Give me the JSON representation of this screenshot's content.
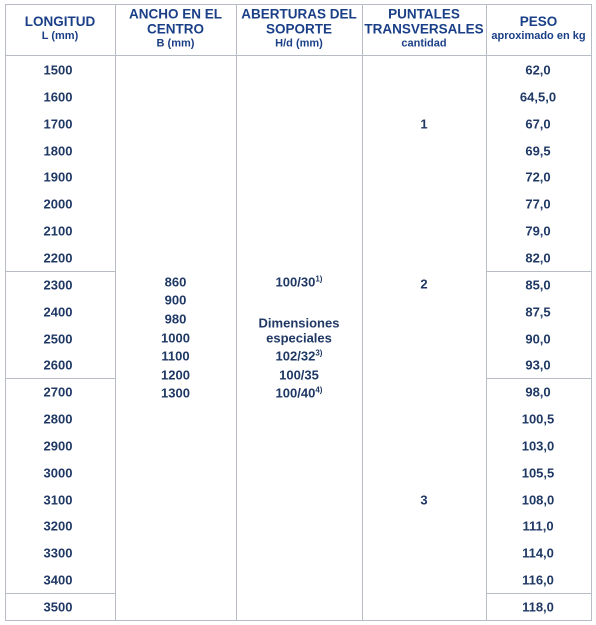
{
  "header": [
    {
      "title": [
        "LONGITUD"
      ],
      "unit": "L (mm)"
    },
    {
      "title": [
        "ANCHO EN EL",
        "CENTRO"
      ],
      "unit": "B (mm)"
    },
    {
      "title": [
        "ABERTURAS DEL",
        "SOPORTE"
      ],
      "unit": "H/d (mm)"
    },
    {
      "title": [
        "PUNTALES",
        "TRANSVERSALES"
      ],
      "unit": "cantidad"
    },
    {
      "title": [
        "PESO"
      ],
      "unit": "aproximado en kg"
    }
  ],
  "rows": [
    {
      "longitud": "1500",
      "peso": "62,0"
    },
    {
      "longitud": "1600",
      "peso": "64,5,0"
    },
    {
      "longitud": "1700",
      "peso": "67,0"
    },
    {
      "longitud": "1800",
      "peso": "69,5"
    },
    {
      "longitud": "1900",
      "peso": "72,0"
    },
    {
      "longitud": "2000",
      "peso": "77,0"
    },
    {
      "longitud": "2100",
      "peso": "79,0"
    },
    {
      "longitud": "2200",
      "peso": "82,0"
    },
    {
      "longitud": "2300",
      "peso": "85,0"
    },
    {
      "longitud": "2400",
      "peso": "87,5"
    },
    {
      "longitud": "2500",
      "peso": "90,0"
    },
    {
      "longitud": "2600",
      "peso": "93,0"
    },
    {
      "longitud": "2700",
      "peso": "98,0"
    },
    {
      "longitud": "2800",
      "peso": "100,5"
    },
    {
      "longitud": "2900",
      "peso": "103,0"
    },
    {
      "longitud": "3000",
      "peso": "105,5"
    },
    {
      "longitud": "3100",
      "peso": "108,0"
    },
    {
      "longitud": "3200",
      "peso": "111,0"
    },
    {
      "longitud": "3300",
      "peso": "114,0"
    },
    {
      "longitud": "3400",
      "peso": "116,0"
    },
    {
      "longitud": "3500",
      "peso": "118,0"
    }
  ],
  "puntales": [
    "1",
    "2",
    "3"
  ],
  "ancho": [
    "860",
    "900",
    "980",
    "1000",
    "1100",
    "1200",
    "1300"
  ],
  "aberturas": [
    {
      "text": "100/30",
      "note": "1)"
    },
    {
      "text": "Dimensiones"
    },
    {
      "text": "especiales"
    },
    {
      "text": "102/32",
      "note": "3)"
    },
    {
      "text": "100/35"
    },
    {
      "text": "100/40",
      "note": "4)"
    }
  ]
}
